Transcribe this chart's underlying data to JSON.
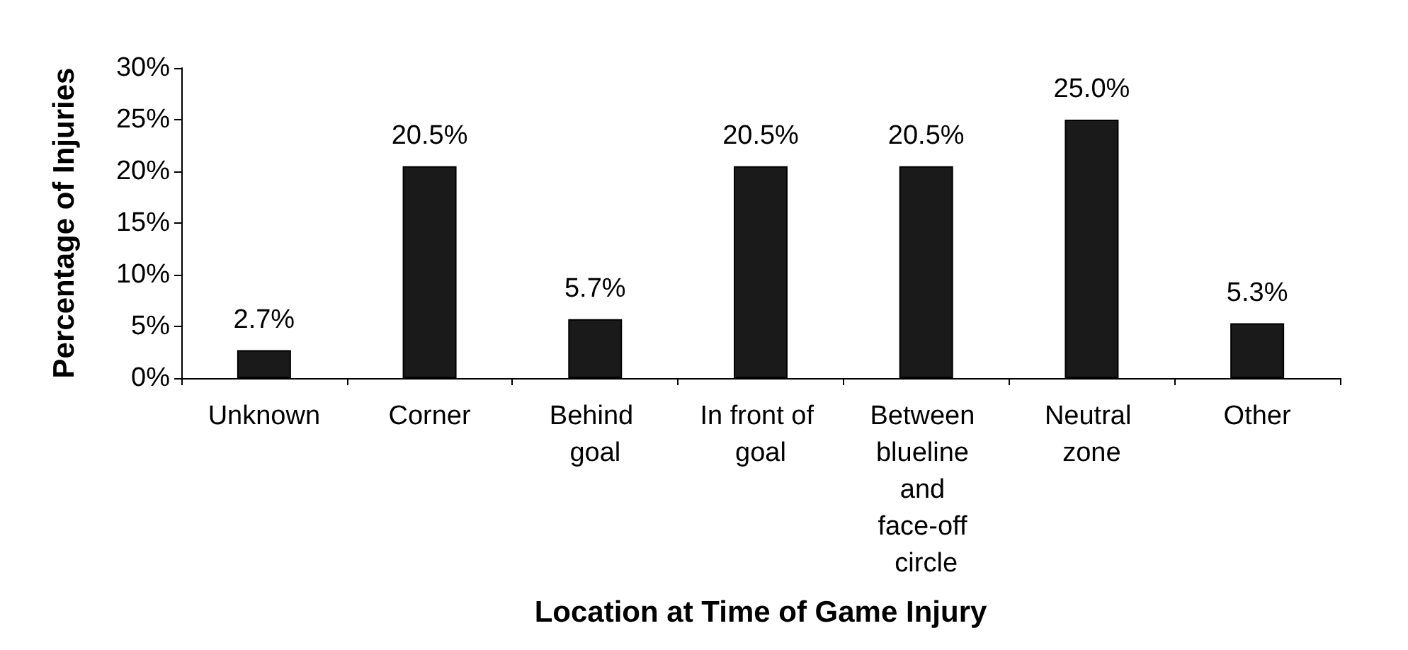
{
  "chart_data": {
    "type": "bar",
    "xlabel": "Location at Time of Game Injury",
    "ylabel": "Percentage of Injuries",
    "categories": [
      "Unknown",
      "Corner",
      "Behind goal",
      "In front of goal",
      "Between blueline and face-off circle",
      "Neutral zone",
      "Other"
    ],
    "values": [
      2.7,
      20.5,
      5.7,
      20.5,
      20.5,
      25.0,
      5.3
    ],
    "value_labels": [
      "2.7%",
      "20.5%",
      "5.7%",
      "20.5%",
      "20.5%",
      "25.0%",
      "5.3%"
    ],
    "color": "#1a1a1a",
    "ylim": [
      0,
      30
    ],
    "yticks": [
      {
        "value": 0,
        "label": "0%"
      },
      {
        "value": 5,
        "label": "5%"
      },
      {
        "value": 10,
        "label": "10%"
      },
      {
        "value": 15,
        "label": "15%"
      },
      {
        "value": 20,
        "label": "20%"
      },
      {
        "value": 25,
        "label": "25%"
      },
      {
        "value": 30,
        "label": "30%"
      }
    ],
    "grid": false
  }
}
